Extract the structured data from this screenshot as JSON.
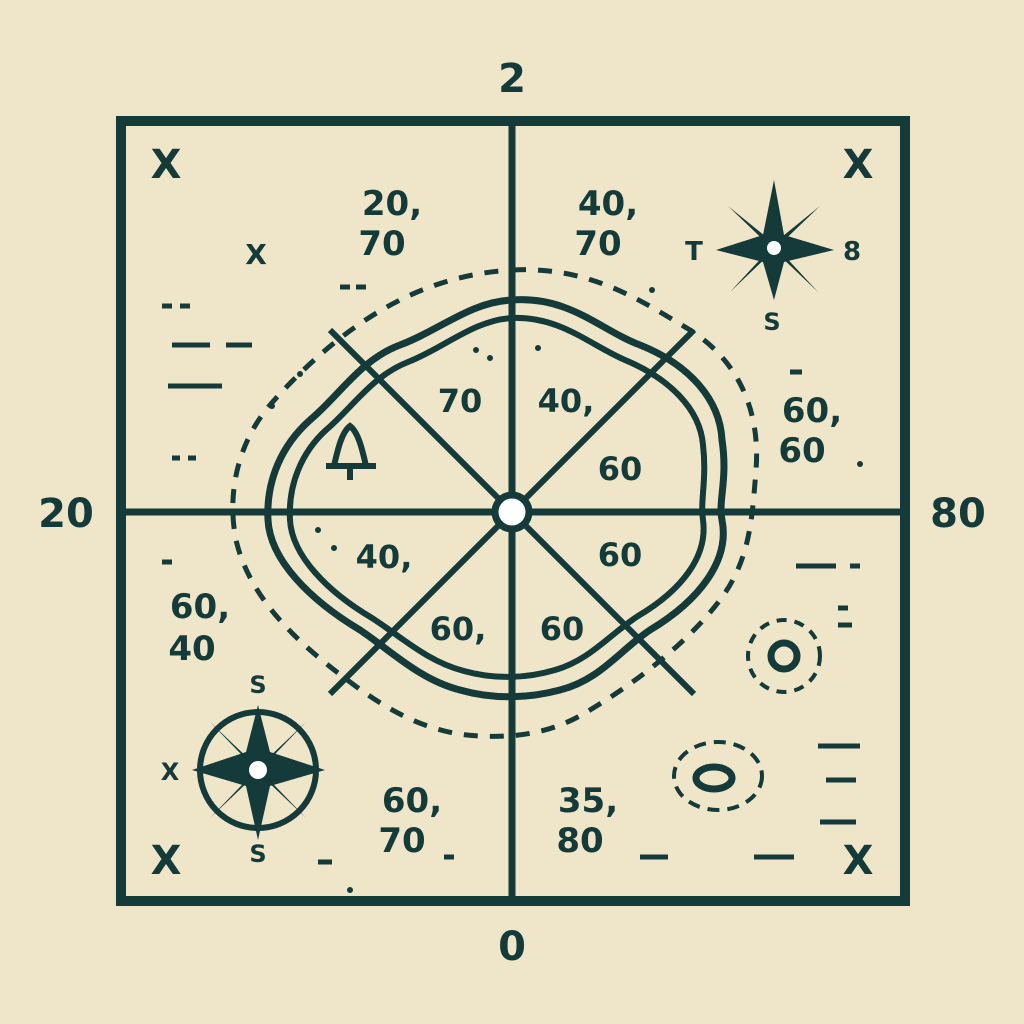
{
  "edges": {
    "top": "2",
    "bottom": "0",
    "left": "20",
    "right": "80"
  },
  "corners": [
    "X",
    "X",
    "X",
    "X"
  ],
  "grid_labels": {
    "nw": [
      "20,",
      "70"
    ],
    "ne": [
      "40,",
      "70"
    ],
    "e": [
      "60,",
      "60"
    ],
    "w": [
      "60,",
      "40"
    ],
    "sw": [
      "60,",
      "70"
    ],
    "s": [
      "35,",
      "80"
    ]
  },
  "sector_labels": [
    "70",
    "40,",
    "60",
    "40,",
    "60",
    "60,",
    "60"
  ],
  "small_marks": {
    "nw_x": "X",
    "sw_x": "X",
    "ne_t": "T",
    "ne_8": "8",
    "ne_s": "S",
    "sw_s_top": "S",
    "sw_s_bottom": "S"
  },
  "colors": {
    "paper": "#efe6c9",
    "ink": "#143a3a"
  }
}
